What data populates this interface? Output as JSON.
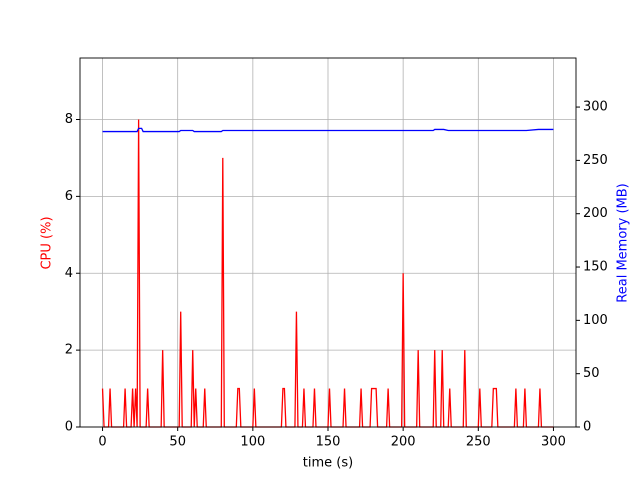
{
  "chart_data": {
    "type": "line",
    "xlabel": "time (s)",
    "ylabel": "CPU (%)",
    "y2label": "Real Memory (MB)",
    "x": [
      0,
      1,
      4,
      5,
      6,
      14,
      15,
      16,
      19,
      20,
      21,
      22,
      23,
      24,
      25,
      26,
      27,
      29,
      30,
      31,
      39,
      40,
      41,
      51,
      52,
      53,
      59,
      60,
      61,
      62,
      63,
      67,
      68,
      69,
      79,
      80,
      81,
      89,
      90,
      91,
      92,
      100,
      101,
      102,
      119,
      120,
      121,
      122,
      128,
      129,
      130,
      133,
      134,
      135,
      140,
      141,
      142,
      150,
      151,
      152,
      160,
      161,
      162,
      171,
      172,
      173,
      178,
      179,
      182,
      183,
      189,
      190,
      191,
      199,
      200,
      201,
      209,
      210,
      211,
      220,
      221,
      222,
      225,
      226,
      227,
      230,
      231,
      232,
      240,
      241,
      242,
      250,
      251,
      252,
      259,
      260,
      262,
      263,
      274,
      275,
      276,
      280,
      281,
      282,
      290,
      291,
      292,
      300
    ],
    "series": [
      {
        "name": "CPU (%)",
        "color": "#ff0000",
        "values": [
          1,
          0,
          0,
          1,
          0,
          0,
          1,
          0,
          0,
          1,
          0,
          1,
          0,
          8,
          0,
          0,
          0,
          0,
          1,
          0,
          0,
          2,
          0,
          0,
          3,
          0,
          0,
          2,
          0,
          1,
          0,
          0,
          1,
          0,
          0,
          7,
          0,
          0,
          1,
          1,
          0,
          0,
          1,
          0,
          0,
          1,
          1,
          0,
          0,
          3,
          0,
          0,
          1,
          0,
          0,
          1,
          0,
          0,
          1,
          0,
          0,
          1,
          0,
          0,
          1,
          0,
          0,
          1,
          1,
          0,
          0,
          1,
          0,
          0,
          4,
          0,
          0,
          2,
          0,
          0,
          2,
          0,
          0,
          2,
          0,
          0,
          1,
          0,
          0,
          2,
          0,
          0,
          1,
          0,
          0,
          1,
          1,
          0,
          0,
          1,
          0,
          0,
          1,
          0,
          0,
          1,
          0,
          0
        ]
      },
      {
        "name": "Real Memory (MB)",
        "color": "#0000ff",
        "axis": "y2",
        "values": [
          277,
          277,
          277,
          277,
          277,
          277,
          277,
          277,
          277,
          277,
          277,
          277,
          277,
          280,
          280,
          280,
          277,
          277,
          277,
          277,
          277,
          277,
          277,
          277,
          278,
          278,
          278,
          278,
          277,
          277,
          277,
          277,
          277,
          277,
          277,
          278,
          278,
          278,
          278,
          278,
          278,
          278,
          278,
          278,
          278,
          278,
          278,
          278,
          278,
          278,
          278,
          278,
          278,
          278,
          278,
          278,
          278,
          278,
          278,
          278,
          278,
          278,
          278,
          278,
          278,
          278,
          278,
          278,
          278,
          278,
          278,
          278,
          278,
          278,
          278,
          278,
          278,
          278,
          278,
          278,
          279,
          279,
          279,
          279,
          279,
          278,
          278,
          278,
          278,
          278,
          278,
          278,
          278,
          278,
          278,
          278,
          278,
          278,
          278,
          278,
          278,
          278,
          278,
          278,
          279,
          279,
          279,
          279
        ]
      }
    ],
    "xlim": [
      -15,
      315
    ],
    "xticks": [
      0,
      50,
      100,
      150,
      200,
      250,
      300
    ],
    "ylim": [
      0,
      9.6
    ],
    "yticks": [
      0,
      2,
      4,
      6,
      8
    ],
    "y2lim": [
      0,
      346
    ],
    "y2ticks": [
      0,
      50,
      100,
      150,
      200,
      250,
      300
    ],
    "grid": true
  }
}
